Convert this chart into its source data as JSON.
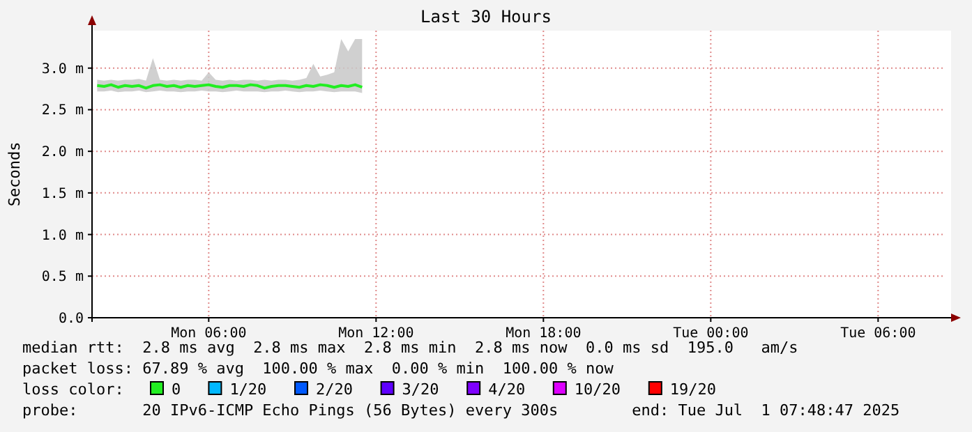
{
  "chart_data": {
    "type": "line",
    "title": "Last 30 Hours",
    "ylabel": "Seconds",
    "legend_title": "loss color:",
    "legend": "bottom",
    "grid": true,
    "marker": "none",
    "line_style": "solid",
    "xlim": [
      "2025-06-30T01:49",
      "2025-07-01T08:37"
    ],
    "xticks": [
      {
        "value": "2025-06-30T06:00",
        "label": "Mon 06:00"
      },
      {
        "value": "2025-06-30T12:00",
        "label": "Mon 12:00"
      },
      {
        "value": "2025-06-30T18:00",
        "label": "Mon 18:00"
      },
      {
        "value": "2025-07-01T00:00",
        "label": "Tue 00:00"
      },
      {
        "value": "2025-07-01T06:00",
        "label": "Tue 06:00"
      }
    ],
    "ylim": [
      0,
      3.45
    ],
    "yticks": [
      {
        "value": 0,
        "label": "0.0"
      },
      {
        "value": 0.5,
        "label": "0.5 m"
      },
      {
        "value": 1,
        "label": "1.0 m"
      },
      {
        "value": 1.5,
        "label": "1.5 m"
      },
      {
        "value": 2,
        "label": "2.0 m"
      },
      {
        "value": 2.5,
        "label": "2.5 m"
      },
      {
        "value": 3,
        "label": "3.0 m"
      }
    ],
    "x": [
      "2025-06-30T02:00",
      "2025-06-30T02:15",
      "2025-06-30T02:30",
      "2025-06-30T02:45",
      "2025-06-30T03:00",
      "2025-06-30T03:15",
      "2025-06-30T03:30",
      "2025-06-30T03:45",
      "2025-06-30T04:00",
      "2025-06-30T04:15",
      "2025-06-30T04:30",
      "2025-06-30T04:45",
      "2025-06-30T05:00",
      "2025-06-30T05:15",
      "2025-06-30T05:30",
      "2025-06-30T05:45",
      "2025-06-30T06:00",
      "2025-06-30T06:15",
      "2025-06-30T06:30",
      "2025-06-30T06:45",
      "2025-06-30T07:00",
      "2025-06-30T07:15",
      "2025-06-30T07:30",
      "2025-06-30T07:45",
      "2025-06-30T08:00",
      "2025-06-30T08:15",
      "2025-06-30T08:30",
      "2025-06-30T08:45",
      "2025-06-30T09:00",
      "2025-06-30T09:15",
      "2025-06-30T09:30",
      "2025-06-30T09:45",
      "2025-06-30T10:00",
      "2025-06-30T10:15",
      "2025-06-30T10:30",
      "2025-06-30T10:45",
      "2025-06-30T11:00",
      "2025-06-30T11:15",
      "2025-06-30T11:30"
    ],
    "series": [
      {
        "name": "0",
        "color": "#22ee22",
        "values": [
          2.79,
          2.78,
          2.8,
          2.77,
          2.79,
          2.78,
          2.79,
          2.76,
          2.79,
          2.8,
          2.78,
          2.79,
          2.77,
          2.79,
          2.78,
          2.79,
          2.8,
          2.78,
          2.77,
          2.79,
          2.79,
          2.78,
          2.8,
          2.79,
          2.76,
          2.78,
          2.79,
          2.79,
          2.78,
          2.77,
          2.79,
          2.78,
          2.8,
          2.79,
          2.77,
          2.79,
          2.78,
          2.8,
          2.77
        ],
        "lower": [
          2.72,
          2.72,
          2.73,
          2.71,
          2.72,
          2.72,
          2.73,
          2.71,
          2.72,
          2.73,
          2.72,
          2.72,
          2.71,
          2.72,
          2.72,
          2.73,
          2.72,
          2.72,
          2.71,
          2.72,
          2.73,
          2.72,
          2.72,
          2.72,
          2.71,
          2.72,
          2.72,
          2.73,
          2.72,
          2.71,
          2.72,
          2.72,
          2.73,
          2.72,
          2.71,
          2.72,
          2.72,
          2.72,
          2.7
        ],
        "upper": [
          2.86,
          2.85,
          2.86,
          2.85,
          2.86,
          2.86,
          2.87,
          2.85,
          3.12,
          2.86,
          2.85,
          2.86,
          2.85,
          2.86,
          2.86,
          2.85,
          2.95,
          2.86,
          2.85,
          2.86,
          2.85,
          2.86,
          2.86,
          2.85,
          2.86,
          2.85,
          2.86,
          2.86,
          2.85,
          2.86,
          2.88,
          3.05,
          2.9,
          2.92,
          2.95,
          3.35,
          3.2,
          3.35,
          3.35
        ]
      },
      {
        "name": "1/20",
        "color": "#00b8ff",
        "values": [
          null,
          null,
          null,
          null,
          null,
          null,
          null,
          null,
          null,
          null,
          null,
          null,
          null,
          null,
          null,
          null,
          null,
          null,
          null,
          null,
          null,
          null,
          null,
          null,
          null,
          null,
          null,
          null,
          null,
          null,
          null,
          null,
          null,
          null,
          null,
          null,
          null,
          null,
          null
        ]
      },
      {
        "name": "2/20",
        "color": "#0059ff",
        "values": [
          null,
          null,
          null,
          null,
          null,
          null,
          null,
          null,
          null,
          null,
          null,
          null,
          null,
          null,
          null,
          null,
          null,
          null,
          null,
          null,
          null,
          null,
          null,
          null,
          null,
          null,
          null,
          null,
          null,
          null,
          null,
          null,
          null,
          null,
          null,
          null,
          null,
          null,
          null
        ]
      },
      {
        "name": "3/20",
        "color": "#5e00ff",
        "values": [
          null,
          null,
          null,
          null,
          null,
          null,
          null,
          null,
          null,
          null,
          null,
          null,
          null,
          null,
          null,
          null,
          null,
          null,
          null,
          null,
          null,
          null,
          null,
          null,
          null,
          null,
          null,
          null,
          null,
          null,
          null,
          null,
          null,
          null,
          null,
          null,
          null,
          null,
          null
        ]
      },
      {
        "name": "4/20",
        "color": "#7e00ff",
        "values": [
          null,
          null,
          null,
          null,
          null,
          null,
          null,
          null,
          null,
          null,
          null,
          null,
          null,
          null,
          null,
          null,
          null,
          null,
          null,
          null,
          null,
          null,
          null,
          null,
          null,
          null,
          null,
          null,
          null,
          null,
          null,
          null,
          null,
          null,
          null,
          null,
          null,
          null,
          null
        ]
      },
      {
        "name": "10/20",
        "color": "#dd00ff",
        "values": [
          null,
          null,
          null,
          null,
          null,
          null,
          null,
          null,
          null,
          null,
          null,
          null,
          null,
          null,
          null,
          null,
          null,
          null,
          null,
          null,
          null,
          null,
          null,
          null,
          null,
          null,
          null,
          null,
          null,
          null,
          null,
          null,
          null,
          null,
          null,
          null,
          null,
          null,
          null
        ]
      },
      {
        "name": "19/20",
        "color": "#ff0000",
        "values": [
          null,
          null,
          null,
          null,
          null,
          null,
          null,
          null,
          null,
          null,
          null,
          null,
          null,
          null,
          null,
          null,
          null,
          null,
          null,
          null,
          null,
          null,
          null,
          null,
          null,
          null,
          null,
          null,
          null,
          null,
          null,
          null,
          null,
          null,
          null,
          null,
          null,
          null,
          null
        ]
      }
    ],
    "annotations": [
      "median rtt:  2.8 ms avg  2.8 ms max  2.8 ms min  2.8 ms now  0.0 ms sd  195.0   am/s",
      "packet loss: 67.89 % avg  100.00 % max  0.00 % min  100.00 % now",
      "probe:       20 IPv6-ICMP Echo Pings (56 Bytes) every 300s        end: Tue Jul  1 07:48:47 2025"
    ]
  }
}
